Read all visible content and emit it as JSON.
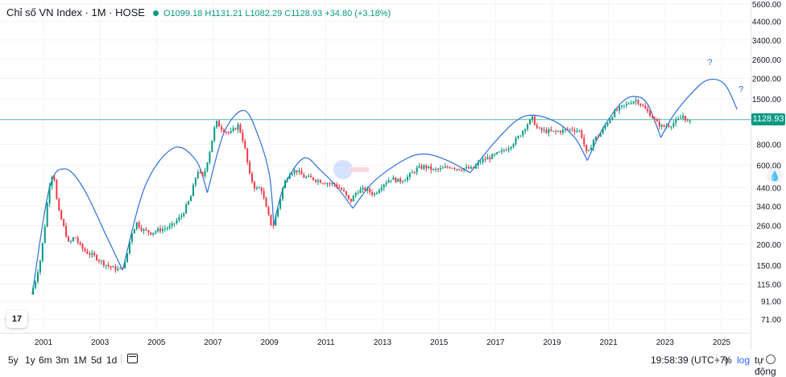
{
  "header": {
    "symbol": "Chỉ số VN Index · 1M · HOSE",
    "open_label": "O",
    "open": "1099.18",
    "high_label": "H",
    "high": "1131.21",
    "low_label": "L",
    "low": "1082.29",
    "close_label": "C",
    "close": "1128.93",
    "change": "+34.80 (+3.18%)"
  },
  "last_price_tag": "1128.93",
  "toolbar": {
    "timeframes": [
      "5y",
      "1y",
      "6m",
      "3m",
      "1M",
      "5d",
      "1d"
    ],
    "clock": "19:58:39 (UTC+7)",
    "percent_label": "%",
    "log_label": "log",
    "auto_label": "tự động"
  },
  "colors": {
    "up": "#089981",
    "down": "#f23645",
    "arc": "#2f6fd8",
    "price_line": "#089981"
  },
  "icons": [
    "tradingview-logo-icon",
    "calendar-icon",
    "gear-icon",
    "drop-icon"
  ],
  "chart_data": {
    "type": "candlestick",
    "title": "",
    "y_scale": "log",
    "ylim": [
      62,
      5600
    ],
    "xlim": [
      "2000-06",
      "2025-12"
    ],
    "y_ticks": [
      "5600.00",
      "4400.00",
      "3400.00",
      "2600.00",
      "2000.00",
      "1500.00",
      "800.00",
      "600.00",
      "440.00",
      "340.00",
      "260.00",
      "200.00",
      "150.00",
      "115.00",
      "91.00",
      "71.00"
    ],
    "y_tick_values": [
      5600,
      4400,
      3400,
      2600,
      2000,
      1500,
      800,
      600,
      440,
      340,
      260,
      200,
      150,
      115,
      91,
      71
    ],
    "x_ticks": [
      "2001",
      "2003",
      "2005",
      "2007",
      "2009",
      "2011",
      "2013",
      "2015",
      "2017",
      "2019",
      "2021",
      "2023",
      "2025"
    ],
    "x_tick_values": [
      2001,
      2003,
      2005,
      2007,
      2009,
      2011,
      2013,
      2015,
      2017,
      2019,
      2021,
      2023,
      2025
    ],
    "last_price": 1128.93,
    "annotations": [
      "?",
      "?"
    ],
    "annotation_points": [
      [
        2024.5,
        2400
      ],
      [
        2025.6,
        1650
      ]
    ],
    "price_path": [
      [
        2000.55,
        100
      ],
      [
        2000.7,
        118
      ],
      [
        2000.9,
        165
      ],
      [
        2001.05,
        260
      ],
      [
        2001.2,
        450
      ],
      [
        2001.35,
        560
      ],
      [
        2001.5,
        330
      ],
      [
        2001.7,
        260
      ],
      [
        2001.9,
        200
      ],
      [
        2002.1,
        225
      ],
      [
        2002.3,
        195
      ],
      [
        2002.5,
        180
      ],
      [
        2002.8,
        170
      ],
      [
        2003.1,
        155
      ],
      [
        2003.4,
        145
      ],
      [
        2003.7,
        140
      ],
      [
        2003.9,
        155
      ],
      [
        2004.1,
        230
      ],
      [
        2004.3,
        270
      ],
      [
        2004.5,
        245
      ],
      [
        2004.8,
        235
      ],
      [
        2005.1,
        245
      ],
      [
        2005.5,
        255
      ],
      [
        2005.9,
        300
      ],
      [
        2006.2,
        380
      ],
      [
        2006.45,
        560
      ],
      [
        2006.65,
        500
      ],
      [
        2006.9,
        750
      ],
      [
        2007.1,
        1100
      ],
      [
        2007.3,
        1000
      ],
      [
        2007.6,
        930
      ],
      [
        2007.9,
        1050
      ],
      [
        2008.1,
        800
      ],
      [
        2008.3,
        520
      ],
      [
        2008.5,
        430
      ],
      [
        2008.7,
        440
      ],
      [
        2008.9,
        320
      ],
      [
        2009.1,
        250
      ],
      [
        2009.3,
        330
      ],
      [
        2009.5,
        460
      ],
      [
        2009.7,
        540
      ],
      [
        2009.95,
        560
      ],
      [
        2010.2,
        510
      ],
      [
        2010.5,
        500
      ],
      [
        2010.8,
        480
      ],
      [
        2011.0,
        470
      ],
      [
        2011.3,
        460
      ],
      [
        2011.6,
        420
      ],
      [
        2011.85,
        360
      ],
      [
        2012.1,
        420
      ],
      [
        2012.4,
        430
      ],
      [
        2012.7,
        400
      ],
      [
        2013.0,
        460
      ],
      [
        2013.3,
        500
      ],
      [
        2013.6,
        480
      ],
      [
        2013.9,
        510
      ],
      [
        2014.2,
        570
      ],
      [
        2014.5,
        590
      ],
      [
        2014.8,
        560
      ],
      [
        2015.1,
        570
      ],
      [
        2015.4,
        590
      ],
      [
        2015.7,
        570
      ],
      [
        2015.9,
        575
      ],
      [
        2016.2,
        570
      ],
      [
        2016.5,
        640
      ],
      [
        2016.9,
        680
      ],
      [
        2017.2,
        720
      ],
      [
        2017.5,
        780
      ],
      [
        2017.8,
        880
      ],
      [
        2018.1,
        1050
      ],
      [
        2018.3,
        1150
      ],
      [
        2018.5,
        980
      ],
      [
        2018.8,
        960
      ],
      [
        2019.1,
        950
      ],
      [
        2019.4,
        970
      ],
      [
        2019.7,
        990
      ],
      [
        2020.0,
        960
      ],
      [
        2020.25,
        680
      ],
      [
        2020.45,
        850
      ],
      [
        2020.7,
        920
      ],
      [
        2020.95,
        1080
      ],
      [
        2021.2,
        1250
      ],
      [
        2021.5,
        1350
      ],
      [
        2021.8,
        1450
      ],
      [
        2022.0,
        1480
      ],
      [
        2022.3,
        1300
      ],
      [
        2022.5,
        1200
      ],
      [
        2022.7,
        1080
      ],
      [
        2022.9,
        1020
      ],
      [
        2023.2,
        1050
      ],
      [
        2023.5,
        1130
      ],
      [
        2023.65,
        1200
      ],
      [
        2023.75,
        1120
      ],
      [
        2023.85,
        1060
      ],
      [
        2023.95,
        1128.93
      ]
    ],
    "arcs": [
      [
        [
          2000.6,
          100
        ],
        [
          2001.2,
          430
        ],
        [
          2001.75,
          570
        ],
        [
          2002.4,
          440
        ],
        [
          2003.2,
          230
        ],
        [
          2003.8,
          140
        ]
      ],
      [
        [
          2003.8,
          140
        ],
        [
          2004.6,
          450
        ],
        [
          2005.6,
          760
        ],
        [
          2006.4,
          640
        ],
        [
          2006.8,
          410
        ]
      ],
      [
        [
          2006.8,
          410
        ],
        [
          2007.4,
          950
        ],
        [
          2008.1,
          1280
        ],
        [
          2008.6,
          900
        ],
        [
          2009.0,
          520
        ],
        [
          2009.15,
          260
        ]
      ],
      [
        [
          2009.15,
          260
        ],
        [
          2009.5,
          440
        ],
        [
          2010.2,
          660
        ],
        [
          2010.8,
          560
        ],
        [
          2011.4,
          440
        ],
        [
          2011.95,
          330
        ]
      ],
      [
        [
          2011.95,
          330
        ],
        [
          2012.7,
          480
        ],
        [
          2013.8,
          650
        ],
        [
          2014.5,
          700
        ],
        [
          2015.3,
          640
        ],
        [
          2016.1,
          540
        ]
      ],
      [
        [
          2016.1,
          540
        ],
        [
          2016.9,
          800
        ],
        [
          2017.7,
          1100
        ],
        [
          2018.3,
          1200
        ],
        [
          2019.1,
          1100
        ],
        [
          2019.8,
          880
        ],
        [
          2020.25,
          640
        ]
      ],
      [
        [
          2020.25,
          640
        ],
        [
          2020.8,
          1000
        ],
        [
          2021.5,
          1450
        ],
        [
          2022.0,
          1550
        ],
        [
          2022.4,
          1380
        ],
        [
          2022.85,
          880
        ]
      ],
      [
        [
          2022.85,
          880
        ],
        [
          2023.3,
          1200
        ],
        [
          2023.9,
          1600
        ],
        [
          2024.5,
          1950
        ],
        [
          2025.1,
          1850
        ],
        [
          2025.55,
          1300
        ]
      ]
    ]
  }
}
